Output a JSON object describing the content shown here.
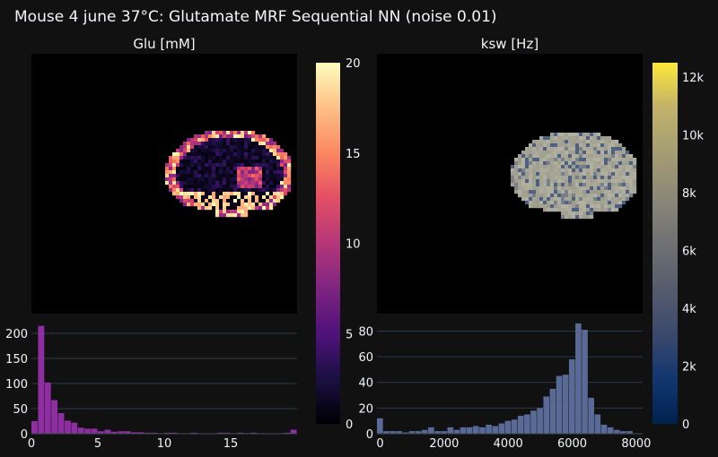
{
  "title": "Mouse 4 june 37°C: Glutamate MRF Sequential NN (noise 0.01)",
  "chart_data": [
    {
      "type": "heatmap",
      "name": "glu-map",
      "title": "Glu [mM]",
      "colorscale": "magma",
      "zlim": [
        0,
        20
      ],
      "colorbar_ticks": [
        "0",
        "5",
        "10",
        "15",
        "20"
      ],
      "colorbar_tick_values": [
        0,
        5,
        10,
        15,
        20
      ]
    },
    {
      "type": "heatmap",
      "name": "ksw-map",
      "title": "ksw [Hz]",
      "colorscale": "cividis",
      "zlim": [
        0,
        12500
      ],
      "colorbar_ticks": [
        "0",
        "2k",
        "4k",
        "6k",
        "8k",
        "10k",
        "12k"
      ],
      "colorbar_tick_values": [
        0,
        2000,
        4000,
        6000,
        8000,
        10000,
        12000
      ]
    },
    {
      "type": "bar",
      "name": "glu-histogram",
      "color": "#8e2ea0",
      "xlim": [
        0,
        20
      ],
      "ylim": [
        0,
        225
      ],
      "xticks": [
        0,
        5,
        10,
        15
      ],
      "yticks": [
        0,
        50,
        100,
        150,
        200
      ],
      "bin_width": 0.5,
      "x": [
        0.25,
        0.75,
        1.25,
        1.75,
        2.25,
        2.75,
        3.25,
        3.75,
        4.25,
        4.75,
        5.25,
        5.75,
        6.25,
        6.75,
        7.25,
        7.75,
        8.25,
        8.75,
        9.25,
        9.75,
        10.25,
        10.75,
        11.25,
        11.75,
        12.25,
        12.75,
        13.25,
        13.75,
        14.25,
        14.75,
        15.25,
        15.75,
        16.25,
        16.75,
        17.25,
        17.75,
        18.25,
        18.75,
        19.25,
        19.75
      ],
      "values": [
        25,
        215,
        102,
        67,
        41,
        26,
        22,
        12,
        10,
        10,
        5,
        8,
        4,
        5,
        5,
        3,
        3,
        2,
        2,
        1,
        2,
        2,
        1,
        1,
        2,
        1,
        1,
        1,
        2,
        2,
        1,
        2,
        1,
        2,
        1,
        1,
        1,
        1,
        2,
        8
      ]
    },
    {
      "type": "bar",
      "name": "ksw-histogram",
      "color": "#5a6a96",
      "xlim": [
        -100,
        8200
      ],
      "ylim": [
        0,
        88
      ],
      "xticks": [
        0,
        2000,
        4000,
        6000,
        8000
      ],
      "yticks": [
        0,
        20,
        40,
        60,
        80
      ],
      "bin_width": 200,
      "x": [
        0,
        200,
        400,
        600,
        800,
        1000,
        1200,
        1400,
        1600,
        1800,
        2000,
        2200,
        2400,
        2600,
        2800,
        3000,
        3200,
        3400,
        3600,
        3800,
        4000,
        4200,
        4400,
        4600,
        4800,
        5000,
        5200,
        5400,
        5600,
        5800,
        6000,
        6200,
        6400,
        6600,
        6800,
        7000,
        7200,
        7400,
        7600,
        7800
      ],
      "values": [
        12,
        2,
        2,
        2,
        1,
        2,
        2,
        3,
        5,
        2,
        2,
        5,
        3,
        5,
        5,
        6,
        5,
        7,
        6,
        8,
        10,
        11,
        14,
        15,
        18,
        20,
        29,
        35,
        45,
        46,
        58,
        86,
        81,
        28,
        15,
        7,
        5,
        3,
        2,
        2
      ]
    }
  ]
}
